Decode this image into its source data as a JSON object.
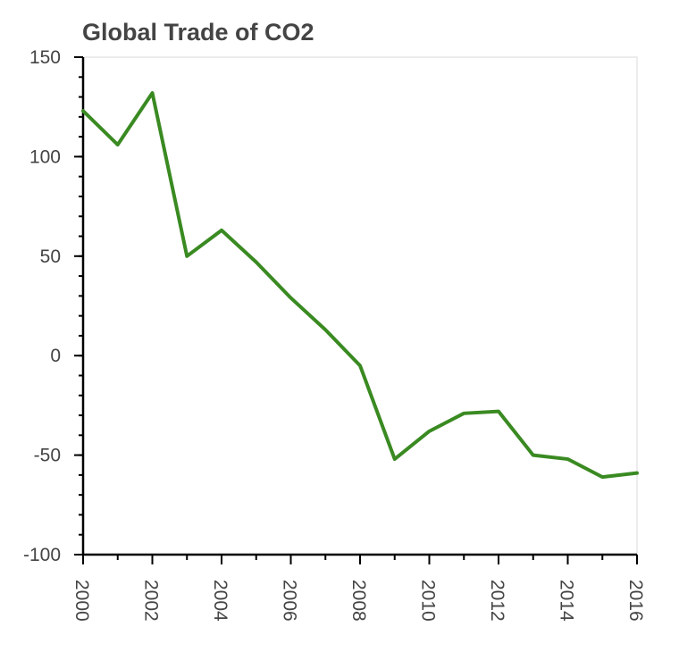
{
  "chart_data": {
    "type": "line",
    "title": "Global Trade of CO2",
    "xlabel": "",
    "ylabel": "",
    "x": [
      2000,
      2001,
      2002,
      2003,
      2004,
      2005,
      2006,
      2007,
      2008,
      2009,
      2010,
      2011,
      2012,
      2013,
      2014,
      2015,
      2016
    ],
    "series": [
      {
        "values": [
          123,
          106,
          132,
          50,
          63,
          47,
          29,
          13,
          -5,
          -52,
          -38,
          -29,
          -28,
          -50,
          -52,
          -61,
          -59
        ],
        "color": "#3a8a22"
      }
    ],
    "xlim": [
      2000,
      2016
    ],
    "ylim": [
      -100,
      150
    ],
    "x_ticks": [
      2000,
      2002,
      2004,
      2006,
      2008,
      2010,
      2012,
      2014,
      2016
    ],
    "x_tick_labels": [
      "2000",
      "2002",
      "2004",
      "2006",
      "2008",
      "2010",
      "2012",
      "2014",
      "2016"
    ],
    "x_minor_step": 1,
    "y_ticks": [
      150,
      100,
      50,
      0,
      -50,
      -100
    ],
    "y_tick_labels": [
      "150",
      "100",
      "50",
      "0",
      "-50",
      "-100"
    ],
    "y_minor_step": 10,
    "grid": false,
    "legend": "none"
  }
}
